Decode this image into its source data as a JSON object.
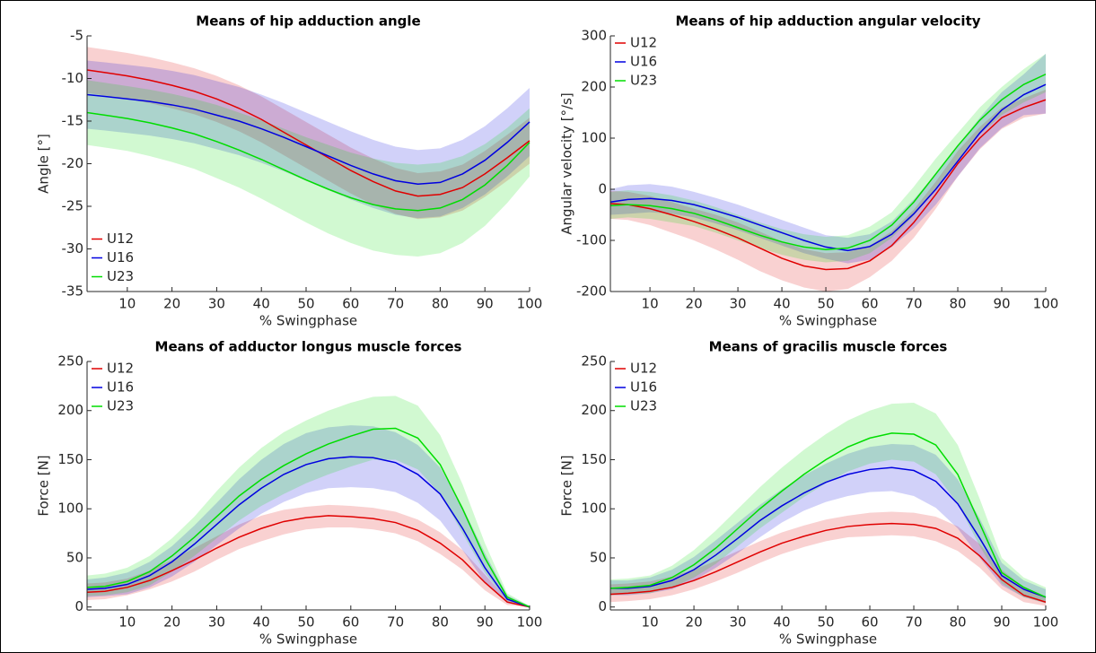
{
  "chart_data": [
    {
      "type": "line",
      "title": "Means of hip adduction angle",
      "xlabel": "% Swingphase",
      "ylabel": "Angle [°]",
      "x": [
        1,
        5,
        10,
        15,
        20,
        25,
        30,
        35,
        40,
        45,
        50,
        55,
        60,
        65,
        70,
        75,
        80,
        85,
        90,
        95,
        100
      ],
      "xlim": [
        1,
        100
      ],
      "xticks": [
        10,
        20,
        30,
        40,
        50,
        60,
        70,
        80,
        90,
        100
      ],
      "ylim": [
        -35,
        -5
      ],
      "yticks": [
        -35,
        -30,
        -25,
        -20,
        -15,
        -10,
        -5
      ],
      "legend": "lower left",
      "series": [
        {
          "name": "U12",
          "color": "#e00000",
          "values": [
            -9,
            -9.3,
            -9.7,
            -10.2,
            -10.8,
            -11.5,
            -12.4,
            -13.5,
            -14.8,
            -16.3,
            -17.8,
            -19.3,
            -20.8,
            -22.1,
            -23.2,
            -23.8,
            -23.6,
            -22.8,
            -21.2,
            -19.3,
            -17.3
          ],
          "upper": [
            -6.3,
            -6.6,
            -7,
            -7.5,
            -8.1,
            -8.8,
            -9.7,
            -10.8,
            -12.1,
            -13.6,
            -15.1,
            -16.6,
            -18.1,
            -19.4,
            -20.5,
            -21.1,
            -20.9,
            -20.1,
            -18.5,
            -16.6,
            -14.6
          ],
          "lower": [
            -11.7,
            -12,
            -12.4,
            -12.9,
            -13.5,
            -14.2,
            -15.1,
            -16.2,
            -17.5,
            -19,
            -20.5,
            -22,
            -23.5,
            -24.8,
            -25.9,
            -26.5,
            -26.3,
            -25.5,
            -23.9,
            -22,
            -20
          ]
        },
        {
          "name": "U16",
          "color": "#0000e0",
          "values": [
            -11.9,
            -12.1,
            -12.4,
            -12.7,
            -13.1,
            -13.6,
            -14.3,
            -15,
            -15.9,
            -16.9,
            -18,
            -19.1,
            -20.2,
            -21.2,
            -22,
            -22.4,
            -22.2,
            -21.2,
            -19.6,
            -17.5,
            -15.1
          ],
          "upper": [
            -7.9,
            -8.1,
            -8.4,
            -8.7,
            -9.1,
            -9.6,
            -10.3,
            -11,
            -11.9,
            -12.9,
            -14,
            -15.1,
            -16.2,
            -17.2,
            -18,
            -18.4,
            -18.2,
            -17.2,
            -15.6,
            -13.5,
            -11.1
          ],
          "lower": [
            -15.9,
            -16.1,
            -16.4,
            -16.7,
            -17.1,
            -17.6,
            -18.3,
            -19,
            -19.9,
            -20.9,
            -22,
            -23.1,
            -24.2,
            -25.2,
            -26,
            -26.4,
            -26.2,
            -25.2,
            -23.6,
            -21.5,
            -19.1
          ]
        },
        {
          "name": "U23",
          "color": "#00dd00",
          "values": [
            -14,
            -14.3,
            -14.7,
            -15.2,
            -15.8,
            -16.5,
            -17.4,
            -18.4,
            -19.5,
            -20.7,
            -21.9,
            -23,
            -24,
            -24.8,
            -25.3,
            -25.5,
            -25.2,
            -24.2,
            -22.5,
            -20.2,
            -17.5
          ],
          "upper": [
            -10.2,
            -10.5,
            -10.9,
            -11.3,
            -11.8,
            -12.4,
            -13.1,
            -14,
            -14.9,
            -15.9,
            -16.9,
            -17.8,
            -18.7,
            -19.4,
            -19.9,
            -20.1,
            -19.9,
            -19.1,
            -17.7,
            -15.8,
            -13.5
          ],
          "lower": [
            -17.8,
            -18.1,
            -18.5,
            -19.1,
            -19.8,
            -20.6,
            -21.7,
            -22.8,
            -24.1,
            -25.5,
            -26.9,
            -28.2,
            -29.3,
            -30.2,
            -30.7,
            -30.9,
            -30.5,
            -29.3,
            -27.3,
            -24.6,
            -21.5
          ]
        }
      ]
    },
    {
      "type": "line",
      "title": "Means of hip adduction angular velocity",
      "xlabel": "% Swingphase",
      "ylabel": "Angular velocity [°/s]",
      "x": [
        1,
        5,
        10,
        15,
        20,
        25,
        30,
        35,
        40,
        45,
        50,
        55,
        60,
        65,
        70,
        75,
        80,
        85,
        90,
        95,
        100
      ],
      "xlim": [
        1,
        100
      ],
      "xticks": [
        10,
        20,
        30,
        40,
        50,
        60,
        70,
        80,
        90,
        100
      ],
      "ylim": [
        -200,
        300
      ],
      "yticks": [
        -200,
        -100,
        0,
        100,
        200,
        300
      ],
      "legend": "upper left",
      "series": [
        {
          "name": "U12",
          "color": "#e00000",
          "values": [
            -28,
            -30,
            -38,
            -50,
            -63,
            -78,
            -95,
            -115,
            -135,
            -150,
            -157,
            -155,
            -140,
            -110,
            -65,
            -10,
            50,
            100,
            140,
            160,
            175
          ],
          "upper": [
            -3,
            -5,
            -13,
            -25,
            -38,
            -50,
            -65,
            -83,
            -102,
            -117,
            -125,
            -123,
            -110,
            -82,
            -40,
            15,
            75,
            122,
            160,
            178,
            195
          ],
          "lower": [
            -58,
            -60,
            -70,
            -85,
            -100,
            -118,
            -138,
            -160,
            -178,
            -192,
            -200,
            -195,
            -172,
            -140,
            -95,
            -38,
            25,
            78,
            118,
            140,
            148
          ]
        },
        {
          "name": "U16",
          "color": "#0000e0",
          "values": [
            -25,
            -20,
            -18,
            -22,
            -30,
            -42,
            -55,
            -70,
            -85,
            -100,
            -113,
            -120,
            -112,
            -88,
            -48,
            0,
            55,
            110,
            155,
            185,
            205
          ],
          "upper": [
            0,
            8,
            10,
            5,
            -5,
            -17,
            -30,
            -45,
            -60,
            -75,
            -90,
            -95,
            -88,
            -63,
            -20,
            30,
            85,
            140,
            190,
            225,
            265
          ],
          "lower": [
            -50,
            -48,
            -45,
            -48,
            -55,
            -67,
            -80,
            -95,
            -110,
            -125,
            -136,
            -145,
            -138,
            -113,
            -76,
            -30,
            25,
            80,
            120,
            145,
            148
          ]
        },
        {
          "name": "U23",
          "color": "#00dd00",
          "values": [
            -32,
            -30,
            -32,
            -38,
            -47,
            -60,
            -75,
            -90,
            -103,
            -113,
            -118,
            -115,
            -100,
            -70,
            -25,
            30,
            85,
            135,
            175,
            205,
            225
          ],
          "upper": [
            -5,
            -2,
            -5,
            -12,
            -22,
            -35,
            -50,
            -65,
            -78,
            -88,
            -93,
            -90,
            -73,
            -45,
            5,
            60,
            110,
            160,
            200,
            235,
            265
          ],
          "lower": [
            -58,
            -55,
            -58,
            -65,
            -72,
            -85,
            -100,
            -115,
            -128,
            -138,
            -143,
            -140,
            -125,
            -95,
            -52,
            0,
            58,
            108,
            145,
            170,
            190
          ]
        }
      ]
    },
    {
      "type": "line",
      "title": "Means of adductor longus muscle forces",
      "xlabel": "% Swingphase",
      "ylabel": "Force [N]",
      "x": [
        1,
        5,
        10,
        15,
        20,
        25,
        30,
        35,
        40,
        45,
        50,
        55,
        60,
        65,
        70,
        75,
        80,
        85,
        90,
        95,
        100
      ],
      "xlim": [
        1,
        100
      ],
      "xticks": [
        10,
        20,
        30,
        40,
        50,
        60,
        70,
        80,
        90,
        100
      ],
      "ylim": [
        -3,
        250
      ],
      "yticks": [
        0,
        50,
        100,
        150,
        200,
        250
      ],
      "legend": "upper left",
      "series": [
        {
          "name": "U12",
          "color": "#e00000",
          "values": [
            15,
            16,
            20,
            27,
            37,
            48,
            60,
            71,
            80,
            87,
            91,
            93,
            92,
            90,
            86,
            78,
            65,
            48,
            25,
            5,
            0
          ],
          "upper": [
            24,
            25,
            29,
            37,
            48,
            60,
            72,
            84,
            93,
            99,
            102,
            104,
            103,
            101,
            97,
            89,
            76,
            58,
            33,
            8,
            1
          ],
          "lower": [
            7,
            8,
            12,
            18,
            26,
            36,
            48,
            59,
            67,
            74,
            79,
            81,
            81,
            79,
            75,
            67,
            54,
            38,
            17,
            2,
            0
          ]
        },
        {
          "name": "U16",
          "color": "#0000e0",
          "values": [
            18,
            19,
            23,
            32,
            46,
            64,
            84,
            104,
            121,
            135,
            145,
            151,
            153,
            152,
            147,
            135,
            115,
            80,
            40,
            8,
            0
          ],
          "upper": [
            28,
            30,
            35,
            46,
            62,
            83,
            106,
            130,
            150,
            166,
            177,
            183,
            185,
            184,
            178,
            165,
            142,
            102,
            55,
            12,
            1
          ],
          "lower": [
            10,
            11,
            13,
            20,
            31,
            46,
            63,
            80,
            95,
            107,
            116,
            121,
            122,
            121,
            117,
            106,
            88,
            58,
            25,
            4,
            0
          ]
        },
        {
          "name": "U23",
          "color": "#00dd00",
          "values": [
            20,
            21,
            26,
            36,
            52,
            71,
            92,
            113,
            130,
            144,
            156,
            166,
            174,
            181,
            182,
            172,
            145,
            100,
            50,
            10,
            0
          ],
          "upper": [
            32,
            34,
            40,
            52,
            70,
            92,
            118,
            142,
            162,
            178,
            190,
            200,
            208,
            214,
            215,
            205,
            175,
            125,
            65,
            14,
            1
          ],
          "lower": [
            11,
            12,
            15,
            22,
            36,
            52,
            70,
            88,
            103,
            115,
            126,
            135,
            143,
            150,
            150,
            140,
            115,
            75,
            35,
            6,
            0
          ]
        }
      ]
    },
    {
      "type": "line",
      "title": "Means of gracilis muscle forces",
      "xlabel": "% Swingphase",
      "ylabel": "Force [N]",
      "x": [
        1,
        5,
        10,
        15,
        20,
        25,
        30,
        35,
        40,
        45,
        50,
        55,
        60,
        65,
        70,
        75,
        80,
        85,
        90,
        95,
        100
      ],
      "xlim": [
        1,
        100
      ],
      "xticks": [
        10,
        20,
        30,
        40,
        50,
        60,
        70,
        80,
        90,
        100
      ],
      "ylim": [
        -3,
        250
      ],
      "yticks": [
        0,
        50,
        100,
        150,
        200,
        250
      ],
      "legend": "upper left",
      "series": [
        {
          "name": "U12",
          "color": "#e00000",
          "values": [
            13,
            14,
            16,
            20,
            27,
            36,
            46,
            56,
            65,
            72,
            78,
            82,
            84,
            85,
            84,
            80,
            70,
            52,
            28,
            12,
            5
          ],
          "upper": [
            23,
            24,
            26,
            31,
            38,
            47,
            57,
            67,
            76,
            83,
            89,
            93,
            96,
            97,
            96,
            92,
            82,
            64,
            38,
            20,
            10
          ],
          "lower": [
            5,
            6,
            8,
            12,
            18,
            26,
            35,
            45,
            54,
            61,
            67,
            71,
            72,
            73,
            72,
            67,
            57,
            40,
            18,
            5,
            1
          ]
        },
        {
          "name": "U16",
          "color": "#0000e0",
          "values": [
            19,
            19,
            21,
            27,
            38,
            53,
            70,
            88,
            103,
            116,
            127,
            135,
            140,
            142,
            139,
            128,
            105,
            70,
            32,
            18,
            10
          ],
          "upper": [
            27,
            27,
            30,
            38,
            51,
            68,
            86,
            104,
            120,
            134,
            146,
            156,
            163,
            166,
            165,
            155,
            130,
            90,
            45,
            27,
            18
          ],
          "lower": [
            12,
            12,
            14,
            18,
            27,
            40,
            55,
            71,
            86,
            98,
            107,
            113,
            117,
            118,
            113,
            101,
            80,
            50,
            22,
            10,
            4
          ]
        },
        {
          "name": "U23",
          "color": "#00dd00",
          "values": [
            19,
            20,
            22,
            30,
            43,
            60,
            80,
            100,
            118,
            135,
            150,
            163,
            172,
            177,
            176,
            165,
            135,
            85,
            35,
            20,
            10
          ],
          "upper": [
            28,
            29,
            32,
            42,
            58,
            78,
            100,
            122,
            142,
            160,
            176,
            190,
            200,
            207,
            208,
            197,
            165,
            110,
            50,
            30,
            20
          ],
          "lower": [
            12,
            13,
            14,
            20,
            30,
            44,
            62,
            80,
            96,
            112,
            126,
            138,
            146,
            150,
            148,
            135,
            105,
            62,
            24,
            10,
            4
          ]
        }
      ]
    }
  ]
}
